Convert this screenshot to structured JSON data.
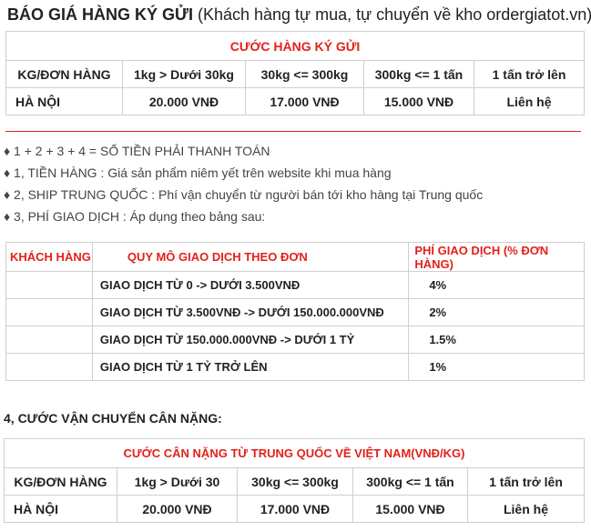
{
  "title": {
    "bold": "BÁO GIÁ HÀNG KÝ GỬI",
    "rest": " (Khách hàng tự mua, tự chuyển về kho ordergiatot.vn)"
  },
  "table1": {
    "caption": "CƯỚC HÀNG KÝ GỬI",
    "headers": [
      "KG/ĐƠN HÀNG",
      "1kg > Dưới 30kg",
      "30kg <= 300kg",
      "300kg <= 1 tấn",
      "1 tấn trở lên"
    ],
    "row": [
      "HÀ NỘI",
      "20.000 VNĐ",
      "17.000 VNĐ",
      "15.000 VNĐ",
      "Liên hệ"
    ]
  },
  "bullets": [
    "♦ 1 + 2 + 3 + 4 = SỐ TIỀN PHẢI THANH TOÁN",
    "♦ 1, TIỀN HÀNG : Giá sản phẩm niêm yết trên website khi mua hàng",
    "♦ 2, SHIP TRUNG QUỐC : Phí vận chuyển từ người bán tới kho hàng tại Trung quốc",
    "♦ 3, PHÍ GIAO DỊCH : Áp dụng theo bảng sau:"
  ],
  "table2": {
    "headers": [
      "KHÁCH HÀNG",
      "QUY MÔ GIAO DỊCH THEO ĐƠN",
      "PHÍ GIAO DỊCH (% ĐƠN HÀNG)"
    ],
    "rows": [
      {
        "customer": "",
        "scale": "GIAO DỊCH TỪ 0   ->  DƯỚI  3.500VNĐ",
        "fee": "4%"
      },
      {
        "customer": "",
        "scale": "GIAO DỊCH TỪ 3.500VNĐ  ->  DƯỚI 150.000.000VNĐ",
        "fee": "2%"
      },
      {
        "customer": "",
        "scale": "GIAO DỊCH TỪ 150.000.000VNĐ   -> DƯỚI  1 TỶ",
        "fee": "1.5%"
      },
      {
        "customer": "",
        "scale": "GIAO DỊCH TỪ 1 TỶ TRỞ LÊN",
        "fee": "1%"
      }
    ]
  },
  "section4": "4, CƯỚC VẬN CHUYỂN CÂN NẶNG:",
  "table3": {
    "caption": "CƯỚC CÂN NẶNG TỪ TRUNG QUỐC VỀ VIỆT NAM(VNĐ/KG)",
    "headers": [
      "KG/ĐƠN HÀNG",
      "1kg > Dưới 30",
      "30kg <= 300kg",
      "300kg <= 1 tấn",
      "1 tấn trở lên"
    ],
    "row": [
      "HÀ NỘI",
      "20.000 VNĐ",
      "17.000 VNĐ",
      "15.000 VNĐ",
      "Liên hệ"
    ]
  },
  "colors": {
    "accent": "#e32119",
    "border": "#cfcfcf",
    "text": "#222222"
  }
}
